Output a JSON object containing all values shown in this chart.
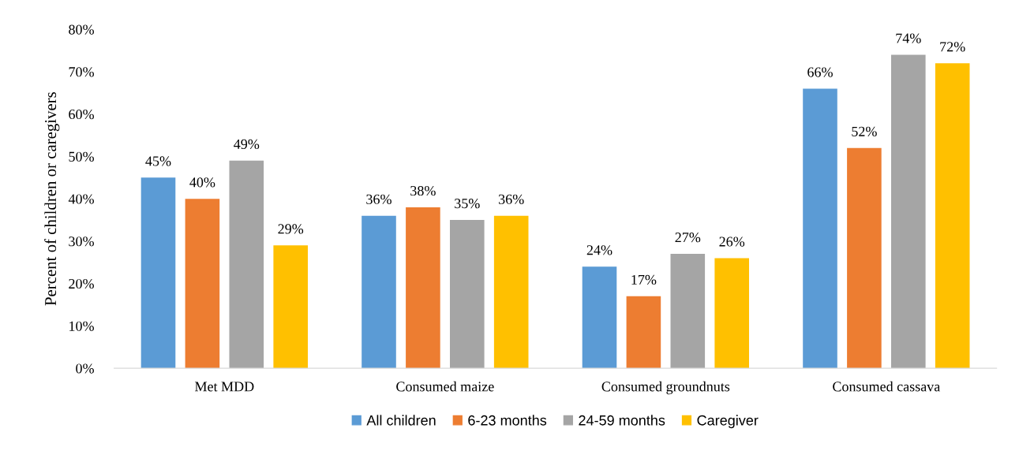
{
  "chart_data": {
    "type": "bar",
    "ylabel": "Percent of children or caregivers",
    "categories": [
      "Met MDD",
      "Consumed maize",
      "Consumed groundnuts",
      "Consumed cassava"
    ],
    "series": [
      {
        "name": "All children",
        "color": "#5b9bd5",
        "values": [
          45,
          36,
          24,
          66
        ],
        "value_labels": [
          "45%",
          "36%",
          "24%",
          "66%"
        ]
      },
      {
        "name": "6-23 months",
        "color": "#ed7d31",
        "values": [
          40,
          38,
          17,
          52
        ],
        "value_labels": [
          "40%",
          "38%",
          "17%",
          "52%"
        ]
      },
      {
        "name": "24-59 months",
        "color": "#a5a5a5",
        "values": [
          49,
          35,
          27,
          74
        ],
        "value_labels": [
          "49%",
          "35%",
          "27%",
          "74%"
        ]
      },
      {
        "name": "Caregiver",
        "color": "#ffc000",
        "values": [
          29,
          36,
          26,
          72
        ],
        "value_labels": [
          "29%",
          "36%",
          "26%",
          "72%"
        ]
      }
    ],
    "ylim": [
      0,
      80
    ],
    "yticks": [
      {
        "value": 0,
        "label": "0%"
      },
      {
        "value": 10,
        "label": "10%"
      },
      {
        "value": 20,
        "label": "20%"
      },
      {
        "value": 30,
        "label": "30%"
      },
      {
        "value": 40,
        "label": "40%"
      },
      {
        "value": 50,
        "label": "50%"
      },
      {
        "value": 60,
        "label": "60%"
      },
      {
        "value": 70,
        "label": "70%"
      },
      {
        "value": 80,
        "label": "80%"
      }
    ],
    "legend": "bottom"
  }
}
